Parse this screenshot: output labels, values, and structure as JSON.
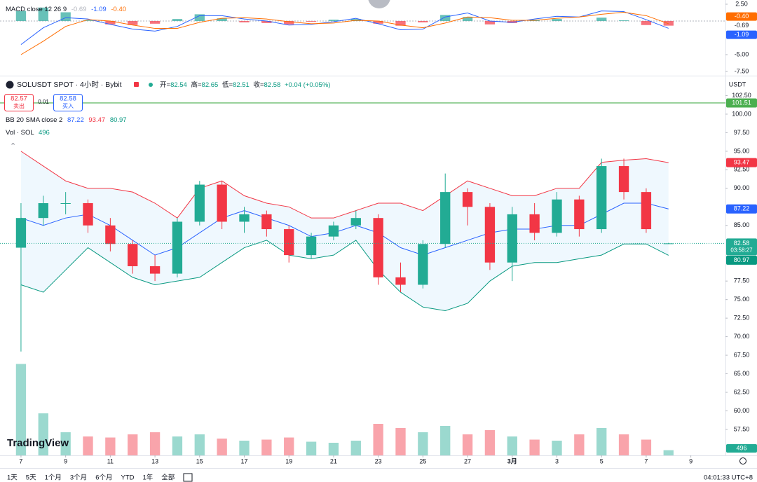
{
  "chart_data": [
    {
      "type": "candlestick",
      "title": "SOLUSDT SPOT · 4小时 · Bybit",
      "ohlc_labels": [
        "开=",
        "高=",
        "低=",
        "收="
      ],
      "change": "+0.04 (+0.05%)",
      "currency": "USDT",
      "x": [
        7,
        8,
        9,
        10,
        11,
        12,
        13,
        14,
        15,
        16,
        17,
        18,
        19,
        20,
        21,
        22,
        23,
        24,
        25,
        26,
        27,
        28,
        29,
        30,
        31,
        32,
        33,
        34,
        35,
        36
      ],
      "xlim": [
        6.06,
        38.55
      ],
      "xticks": [
        7,
        9,
        11,
        13,
        15,
        17,
        19,
        21,
        23,
        25,
        27,
        {
          "value": 29,
          "label": "3月"
        },
        {
          "value": 31,
          "label": "3"
        },
        {
          "value": 33,
          "label": "5"
        },
        {
          "value": 35,
          "label": "7"
        },
        {
          "value": 37,
          "label": "9"
        }
      ],
      "ylim": [
        54,
        105
      ],
      "yticks": [
        {
          "value": 102.5,
          "label": "102.50"
        },
        {
          "value": 100,
          "label": "100.00"
        },
        {
          "value": 97.5,
          "label": "97.50"
        },
        {
          "value": 95,
          "label": "95.00"
        },
        {
          "value": 92.5,
          "label": "92.50"
        },
        {
          "value": 90,
          "label": "90.00"
        },
        {
          "value": 85,
          "label": "85.00"
        },
        {
          "value": 77.5,
          "label": "77.50"
        },
        {
          "value": 75,
          "label": "75.00"
        },
        {
          "value": 72.5,
          "label": "72.50"
        },
        {
          "value": 70,
          "label": "70.00"
        },
        {
          "value": 67.5,
          "label": "67.50"
        },
        {
          "value": 65,
          "label": "65.00"
        },
        {
          "value": 62.5,
          "label": "62.50"
        },
        {
          "value": 60,
          "label": "60.00"
        },
        {
          "value": 57.5,
          "label": "57.50"
        }
      ],
      "open": [
        82,
        86,
        88,
        88,
        85,
        82.5,
        79.5,
        78.5,
        85.5,
        90.5,
        85.5,
        86.5,
        84.5,
        81,
        83.5,
        85,
        86,
        78,
        77,
        82.5,
        89.5,
        87.5,
        80,
        86.5,
        84,
        88.5,
        84.5,
        93,
        89.5,
        82.54
      ],
      "high": [
        88,
        89,
        89.5,
        88.5,
        86,
        83,
        81,
        86,
        91,
        91,
        87.5,
        87,
        85,
        84,
        85.5,
        87,
        86.5,
        80,
        83,
        92,
        90,
        88,
        87.5,
        88,
        89.5,
        89,
        94,
        94,
        90,
        82.65
      ],
      "low": [
        68,
        85,
        86.5,
        84,
        81.5,
        78.5,
        77.5,
        78,
        85,
        84.5,
        84,
        83.5,
        80,
        80.5,
        83,
        84.5,
        77,
        76,
        76.5,
        82,
        85,
        79,
        77.5,
        83,
        83.5,
        83.5,
        84,
        88.5,
        84,
        82.51
      ],
      "close": [
        86,
        88,
        88,
        85,
        82.5,
        79.5,
        78.5,
        85.5,
        90.5,
        85.5,
        86.5,
        84.5,
        81,
        83.5,
        85,
        86,
        78,
        77,
        82.5,
        89.5,
        87.5,
        80,
        86.5,
        84,
        88.5,
        84.5,
        93,
        89.5,
        84.5,
        82.58
      ],
      "up_color": "#22ab94",
      "down_color": "#f23645",
      "bollinger": {
        "label": "BB 20 SMA close 2",
        "upper": [
          95,
          93,
          91,
          90,
          90,
          89.5,
          88,
          86,
          90,
          91,
          89,
          88,
          87.5,
          86,
          86,
          87,
          88,
          88,
          87,
          89,
          91,
          90,
          89,
          89,
          90,
          90,
          93.5,
          93.8,
          94,
          93.47
        ],
        "middle": [
          86,
          85,
          86,
          86.5,
          85,
          83,
          81,
          82,
          84,
          86,
          87,
          86,
          85,
          83.5,
          84,
          85,
          84,
          82,
          81,
          82,
          83,
          84,
          84.5,
          84.5,
          85,
          85,
          86.5,
          88,
          88,
          87.22
        ],
        "lower": [
          77,
          76,
          79,
          82,
          80,
          78,
          77,
          77.5,
          78,
          80,
          82,
          83,
          81,
          80.5,
          81,
          83,
          79,
          76,
          74,
          73.5,
          74.5,
          77.5,
          79.5,
          80,
          80,
          80.5,
          81,
          82.5,
          82.5,
          80.97
        ],
        "upper_color": "#f23645",
        "middle_color": "#2962ff",
        "lower_color": "#089981",
        "fill_color": "#2196f3"
      },
      "volume": {
        "label": "Vol · SOL",
        "ylim": [
          0,
          10000
        ],
        "values": [
          8700,
          4000,
          2200,
          1800,
          1700,
          2000,
          2200,
          1800,
          2000,
          1600,
          1400,
          1500,
          1700,
          1300,
          1200,
          1400,
          3000,
          2600,
          2200,
          2800,
          2000,
          2400,
          1800,
          1500,
          1400,
          2000,
          2600,
          2000,
          1500,
          496
        ]
      },
      "price_line": {
        "value": 101.51,
        "color": "#4caf50"
      },
      "countdown": "03:58:27",
      "trade": {
        "sell_price": 82.57,
        "sell_label": "卖出",
        "spread": 0.01,
        "buy_price": 82.58,
        "buy_label": "买入"
      }
    },
    {
      "type": "macd",
      "title": "MACD close 12 26 9",
      "ylim": [
        -8.125,
        3.125
      ],
      "yticks": [
        {
          "value": 2.5,
          "label": "2.50"
        },
        {
          "value": -5,
          "label": "-5.00"
        },
        {
          "value": -7.5,
          "label": "-7.50"
        }
      ],
      "series": [
        {
          "up_color": "#26a69a",
          "down_color": "#f23645",
          "values": [
            1.5,
            2,
            1.3,
            0.1,
            -0.5,
            -0.6,
            -0.4,
            0.3,
            1,
            0.4,
            -0.2,
            -0.3,
            -0.5,
            -0.1,
            0.2,
            0.3,
            -0.4,
            -0.7,
            -0.2,
            0.9,
            0.6,
            -0.5,
            -0.3,
            0.2,
            0.3,
            0,
            0.5,
            0.1,
            -0.6,
            -0.69
          ]
        },
        {
          "color": "#2962ff",
          "values": [
            -3.5,
            -1,
            0.5,
            0.3,
            -0.5,
            -1.2,
            -1.5,
            -0.8,
            0.8,
            0.8,
            0.3,
            0,
            -0.6,
            -0.5,
            -0.1,
            0.4,
            -0.4,
            -1.3,
            -1.2,
            0.6,
            1.2,
            0,
            -0.2,
            0.3,
            0.7,
            0.6,
            1.5,
            1.4,
            0.2,
            -1.09
          ]
        },
        {
          "color": "#ff6d00",
          "values": [
            -5,
            -3,
            -0.8,
            0.2,
            0,
            -0.6,
            -1.1,
            -1.1,
            -0.2,
            0.4,
            0.5,
            0.3,
            -0.1,
            -0.4,
            -0.3,
            0.1,
            0,
            -0.6,
            -1,
            -0.3,
            0.6,
            0.5,
            0.1,
            0.1,
            0.4,
            0.6,
            1,
            1.3,
            0.8,
            -0.4
          ],
          "value_labels": [
            null,
            null,
            null,
            null,
            null,
            null,
            null,
            null,
            null,
            null,
            null,
            null,
            null,
            null,
            null,
            null,
            null,
            null,
            null,
            null,
            null,
            null,
            null,
            null,
            null,
            null,
            null,
            null,
            null,
            "-0.40"
          ]
        }
      ]
    }
  ],
  "toolbar": {
    "ranges": [
      "1天",
      "5天",
      "1个月",
      "3个月",
      "6个月",
      "YTD",
      "1年",
      "全部"
    ],
    "time": "04:01:33 UTC+8"
  },
  "logo": "TradingView"
}
